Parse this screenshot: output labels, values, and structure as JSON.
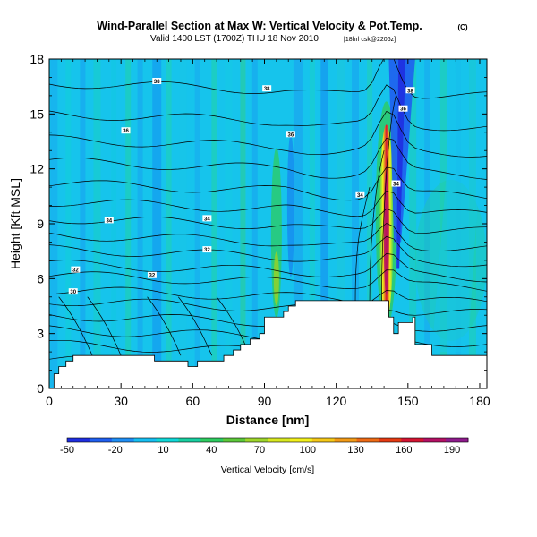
{
  "chart_data": {
    "type": "heatmap",
    "title": "Wind-Parallel Section at Max W: Vertical Velocity & Pot.Temp.",
    "title_mark": "(C)",
    "subtitle": "Valid 1400 LST (1700Z) THU 18 Nov 2010",
    "subtitle_small": "[18hrl csk@2206z]",
    "xlabel": "Distance [nm]",
    "ylabel": "Height [Kft MSL]",
    "xlim": [
      0,
      183
    ],
    "ylim": [
      0,
      18
    ],
    "x_ticks": [
      0,
      30,
      60,
      90,
      120,
      150,
      180
    ],
    "y_ticks": [
      0,
      3,
      6,
      9,
      12,
      15,
      18
    ],
    "colorbar": {
      "label": "Vertical Velocity [cm/s]",
      "min": -50,
      "max": 200,
      "tick_values": [
        -50,
        -20,
        10,
        40,
        70,
        100,
        130,
        160,
        190
      ],
      "colors": [
        "#1e2de0",
        "#1f5ff0",
        "#1e8ef5",
        "#16bff2",
        "#10d8d8",
        "#18cfa0",
        "#2ecc60",
        "#5cc83a",
        "#9ed62b",
        "#d8e820",
        "#f2f01c",
        "#f5c818",
        "#f29a16",
        "#ee6a14",
        "#e53a12",
        "#d41432",
        "#b41064",
        "#8e1a8c"
      ]
    },
    "terrain_profile": {
      "distance_nm": [
        0,
        2,
        4,
        7,
        10,
        42,
        44,
        58,
        62,
        70,
        73,
        77,
        80,
        84,
        88,
        90,
        91,
        96,
        98,
        100,
        103,
        140,
        142,
        144,
        146,
        152,
        153,
        160,
        165,
        170,
        175,
        183
      ],
      "height_kft": [
        0,
        0.8,
        1.2,
        1.5,
        1.8,
        1.8,
        1.5,
        1.2,
        1.5,
        1.5,
        1.8,
        2.1,
        2.4,
        2.7,
        3.0,
        3.9,
        3.9,
        3.9,
        4.2,
        4.5,
        4.8,
        4.8,
        3.9,
        3.0,
        3.6,
        3.9,
        2.4,
        1.8,
        1.8,
        1.8,
        1.8,
        1.8
      ]
    },
    "updraft_core": {
      "distance_nm": 141,
      "height_range_kft": [
        4,
        15
      ],
      "max_cm_s": 190
    },
    "downdraft_core": {
      "distance_nm": 146,
      "height_range_kft": [
        8,
        18
      ],
      "min_cm_s": -50
    },
    "theta_labels": [
      {
        "x": 10,
        "y": 5.3,
        "text": "30"
      },
      {
        "x": 11,
        "y": 6.5,
        "text": "32"
      },
      {
        "x": 25,
        "y": 9.2,
        "text": "34"
      },
      {
        "x": 32,
        "y": 14.1,
        "text": "36"
      },
      {
        "x": 43,
        "y": 6.2,
        "text": "32"
      },
      {
        "x": 45,
        "y": 16.8,
        "text": "38"
      },
      {
        "x": 66,
        "y": 7.6,
        "text": "32"
      },
      {
        "x": 66,
        "y": 9.3,
        "text": "34"
      },
      {
        "x": 91,
        "y": 16.4,
        "text": "38"
      },
      {
        "x": 101,
        "y": 13.9,
        "text": "36"
      },
      {
        "x": 130,
        "y": 10.6,
        "text": "34"
      },
      {
        "x": 145,
        "y": 11.2,
        "text": "34"
      },
      {
        "x": 148,
        "y": 15.3,
        "text": "36"
      },
      {
        "x": 151,
        "y": 16.3,
        "text": "38"
      }
    ]
  }
}
